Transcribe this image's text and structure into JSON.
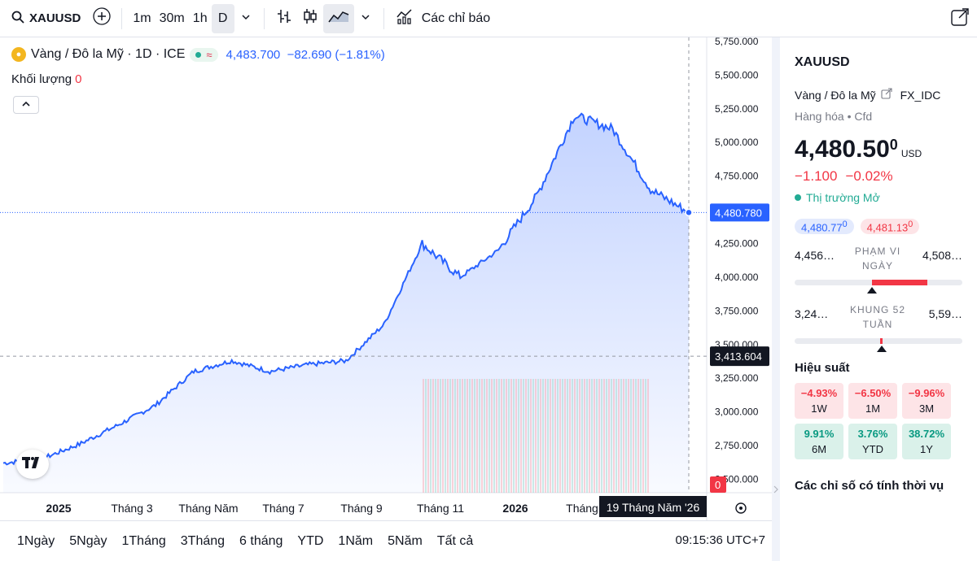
{
  "toolbar": {
    "symbol": "XAUUSD",
    "intervals": [
      "1m",
      "30m",
      "1h",
      "D"
    ],
    "active_interval": "D",
    "indicators_label": "Các chỉ báo"
  },
  "legend": {
    "title": "Vàng / Đô la Mỹ · 1D · ICE",
    "last": "4,483.700",
    "change": "−82.690 (−1.81%)",
    "volume_label": "Khối lượng",
    "volume_value": "0"
  },
  "chart_data": {
    "type": "area",
    "price_axis_ticks": [
      "5,750.000",
      "5,500.000",
      "5,250.000",
      "5,000.000",
      "4,750.000",
      "4,500.000",
      "4,250.000",
      "4,000.000",
      "3,750.000",
      "3,500.000",
      "3,250.000",
      "3,000.000",
      "2,750.000",
      "2,500.000"
    ],
    "time_axis_ticks": [
      "2025",
      "Tháng 3",
      "Tháng Năm",
      "Tháng 7",
      "Tháng 9",
      "Tháng 11",
      "2026",
      "Tháng"
    ],
    "ylim": [
      2400,
      5780
    ],
    "series": [
      {
        "x": [
          "2024-11",
          "2024-12",
          "2025-01",
          "2025-02",
          "2025-03",
          "2025-04",
          "2025-05",
          "2025-06",
          "2025-07",
          "2025-08",
          "2025-09",
          "2025-10",
          "2025-11",
          "2025-12",
          "2026-01",
          "2026-02",
          "2026-03",
          "2026-04",
          "2026-05"
        ],
        "values": [
          2620,
          2650,
          2760,
          2900,
          3050,
          3300,
          3380,
          3300,
          3350,
          3380,
          3650,
          4250,
          4000,
          4200,
          4600,
          5200,
          5100,
          4650,
          4480
        ]
      }
    ],
    "current_price_label": "4,480.780",
    "crosshair_price_label": "3,413.604",
    "crosshair_date_label": "19 Tháng Năm '26",
    "volume_zero_label": "0"
  },
  "bottom": {
    "ranges": [
      "1Ngày",
      "5Ngày",
      "1Tháng",
      "3Tháng",
      "6 tháng",
      "YTD",
      "1Năm",
      "5Năm",
      "Tất cả"
    ],
    "clock": "09:15:36 UTC+7"
  },
  "panel": {
    "symbol": "XAUUSD",
    "description": "Vàng / Đô la Mỹ",
    "source": "FX_IDC",
    "type": "Hàng hóa • Cfd",
    "price_main": "4,480.",
    "price_dec": "50",
    "price_sup": "0",
    "currency": "USD",
    "change_abs": "−1.100",
    "change_pct": "−0.02%",
    "status": "Thị trường Mở",
    "bid": "4,480.77",
    "bid_sup": "0",
    "ask": "4,481.13",
    "ask_sup": "0",
    "day_range": {
      "label1": "PHẠM VI",
      "label2": "NGÀY",
      "low": "4,456…",
      "high": "4,508…"
    },
    "year_range": {
      "label1": "KHUNG 52",
      "label2": "TUẦN",
      "low": "3,24…",
      "high": "5,59…"
    },
    "performance_title": "Hiệu suất",
    "performance": [
      {
        "value": "−4.93%",
        "period": "1W",
        "sign": "neg"
      },
      {
        "value": "−6.50%",
        "period": "1M",
        "sign": "neg"
      },
      {
        "value": "−9.96%",
        "period": "3M",
        "sign": "neg"
      },
      {
        "value": "9.91%",
        "period": "6M",
        "sign": "pos"
      },
      {
        "value": "3.76%",
        "period": "YTD",
        "sign": "pos"
      },
      {
        "value": "38.72%",
        "period": "1Y",
        "sign": "pos"
      }
    ],
    "seasonal_title": "Các chỉ số có tính thời vụ"
  },
  "colors": {
    "line": "#2962ff",
    "down": "#f23645",
    "up": "#089981"
  }
}
